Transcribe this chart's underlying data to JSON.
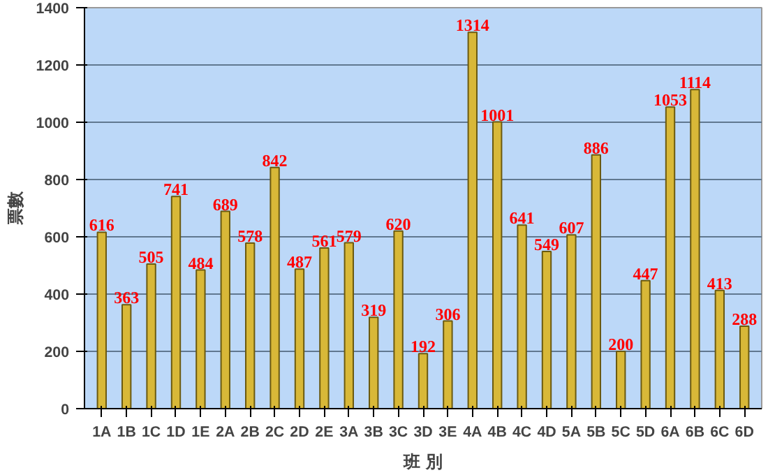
{
  "chart_data": {
    "type": "bar",
    "xlabel": "班 別",
    "ylabel": "票數",
    "categories": [
      "1A",
      "1B",
      "1C",
      "1D",
      "1E",
      "2A",
      "2B",
      "2C",
      "2D",
      "2E",
      "3A",
      "3B",
      "3C",
      "3D",
      "3E",
      "4A",
      "4B",
      "4C",
      "4D",
      "5A",
      "5B",
      "5C",
      "5D",
      "6A",
      "6B",
      "6C",
      "6D"
    ],
    "values": [
      616,
      363,
      505,
      741,
      484,
      689,
      578,
      842,
      487,
      561,
      579,
      319,
      620,
      192,
      306,
      1314,
      1001,
      641,
      549,
      607,
      886,
      200,
      447,
      1053,
      1114,
      413,
      288
    ],
    "color": "#d8b838",
    "ylim": [
      0,
      1400
    ],
    "yticks": [
      0,
      200,
      400,
      600,
      800,
      1000,
      1200,
      1400
    ],
    "grid": "y",
    "data_labels": true
  }
}
